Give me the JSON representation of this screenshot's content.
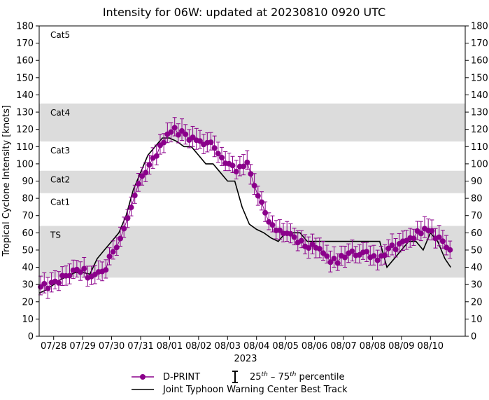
{
  "chart_data": {
    "type": "line",
    "title": "Intensity for 06W: updated at 20230810 0920 UTC",
    "xlabel": "2023",
    "ylabel": "Tropical Cyclone Intensity [knots]",
    "ylim": [
      0,
      180
    ],
    "yticks": [
      0,
      10,
      20,
      30,
      40,
      50,
      60,
      70,
      80,
      90,
      100,
      110,
      120,
      130,
      140,
      150,
      160,
      170,
      180
    ],
    "xlim_days": [
      0,
      14.7
    ],
    "xticks": [
      {
        "day": 0.5,
        "label": "07/28"
      },
      {
        "day": 1.5,
        "label": "07/29"
      },
      {
        "day": 2.5,
        "label": "07/30"
      },
      {
        "day": 3.5,
        "label": "07/31"
      },
      {
        "day": 4.5,
        "label": "08/01"
      },
      {
        "day": 5.5,
        "label": "08/02"
      },
      {
        "day": 6.5,
        "label": "08/03"
      },
      {
        "day": 7.5,
        "label": "08/04"
      },
      {
        "day": 8.5,
        "label": "08/05"
      },
      {
        "day": 9.5,
        "label": "08/06"
      },
      {
        "day": 10.5,
        "label": "08/07"
      },
      {
        "day": 11.5,
        "label": "08/08"
      },
      {
        "day": 12.5,
        "label": "08/09"
      },
      {
        "day": 13.5,
        "label": "08/10"
      }
    ],
    "bands": [
      {
        "label": "TS",
        "min": 34,
        "max": 64,
        "shaded": true
      },
      {
        "label": "Cat1",
        "min": 64,
        "max": 83,
        "shaded": false
      },
      {
        "label": "Cat2",
        "min": 83,
        "max": 96,
        "shaded": true
      },
      {
        "label": "Cat3",
        "min": 96,
        "max": 113,
        "shaded": false
      },
      {
        "label": "Cat4",
        "min": 113,
        "max": 135,
        "shaded": true
      },
      {
        "label": "Cat5",
        "min": 135,
        "max": 180,
        "shaded": false
      }
    ],
    "series": [
      {
        "name": "Joint Typhoon Warning Center Best Track",
        "color": "#000000",
        "x": [
          0.0,
          0.25,
          0.5,
          0.75,
          1.0,
          1.25,
          1.5,
          1.75,
          2.0,
          2.25,
          2.5,
          2.75,
          3.0,
          3.25,
          3.5,
          3.75,
          4.0,
          4.25,
          4.5,
          4.75,
          5.0,
          5.25,
          5.5,
          5.75,
          6.0,
          6.25,
          6.5,
          6.75,
          7.0,
          7.25,
          7.5,
          7.75,
          8.0,
          8.25,
          8.5,
          8.75,
          9.0,
          9.25,
          9.5,
          9.75,
          10.0,
          10.25,
          10.5,
          10.75,
          11.0,
          11.25,
          11.5,
          11.75,
          12.0,
          12.25,
          12.5,
          12.75,
          13.0,
          13.25,
          13.5,
          13.75,
          14.0,
          14.2
        ],
        "values": [
          25,
          27,
          30,
          33,
          35,
          37,
          37,
          36,
          45,
          50,
          55,
          60,
          70,
          85,
          95,
          105,
          110,
          115,
          115,
          113,
          110,
          110,
          105,
          100,
          100,
          95,
          90,
          90,
          75,
          65,
          62,
          60,
          57,
          55,
          60,
          60,
          60,
          55,
          55,
          55,
          55,
          55,
          55,
          55,
          55,
          55,
          55,
          55,
          40,
          45,
          50,
          55,
          55,
          50,
          60,
          55,
          45,
          40
        ]
      },
      {
        "name": "D-PRINT",
        "color": "#8b008b",
        "anchor_x": [
          0.05,
          0.3,
          0.6,
          0.9,
          1.2,
          1.45,
          1.6,
          1.75,
          1.9,
          2.05,
          2.3,
          2.55,
          2.8,
          3.05,
          3.3,
          3.5,
          3.7,
          3.95,
          4.2,
          4.4,
          4.65,
          4.9,
          5.15,
          5.4,
          5.6,
          5.8,
          6.0,
          6.2,
          6.45,
          6.6,
          6.8,
          7.0,
          7.15,
          7.35,
          7.6,
          7.9,
          8.2,
          8.5,
          8.8,
          9.1,
          9.3,
          9.5,
          9.75,
          10.0,
          10.25,
          10.5,
          10.75,
          11.0,
          11.25,
          11.5,
          11.75,
          11.95,
          12.2,
          12.45,
          12.7,
          12.95,
          13.2,
          13.45,
          13.7,
          13.95,
          14.2
        ],
        "anchor_y": [
          28,
          29,
          31,
          35,
          37,
          38,
          37,
          33,
          34,
          37,
          39,
          50,
          57,
          68,
          81,
          90,
          95,
          103,
          110,
          118,
          120,
          118,
          116,
          114,
          112,
          113,
          113,
          104,
          100,
          101,
          97,
          98,
          103,
          92,
          80,
          66,
          61,
          60,
          56,
          53,
          52,
          51,
          49,
          44,
          43,
          46,
          48,
          48,
          49,
          47,
          45,
          49,
          51,
          52,
          55,
          58,
          62,
          60,
          58,
          55,
          50
        ],
        "points_per_day": 8,
        "err_low": 4,
        "err_high": 5
      }
    ],
    "legend": {
      "position": "bottom",
      "entries": [
        "D-PRINT",
        "25th – 75th percentile",
        "Joint Typhoon Warning Center Best Track"
      ]
    }
  },
  "legend": {
    "dprint": "D-PRINT",
    "pct_low": "25",
    "pct_high": "75",
    "pct_sup": "th",
    "pct_dash": " – ",
    "pct_word": " percentile",
    "best_track": "Joint Typhoon Warning Center Best Track"
  }
}
